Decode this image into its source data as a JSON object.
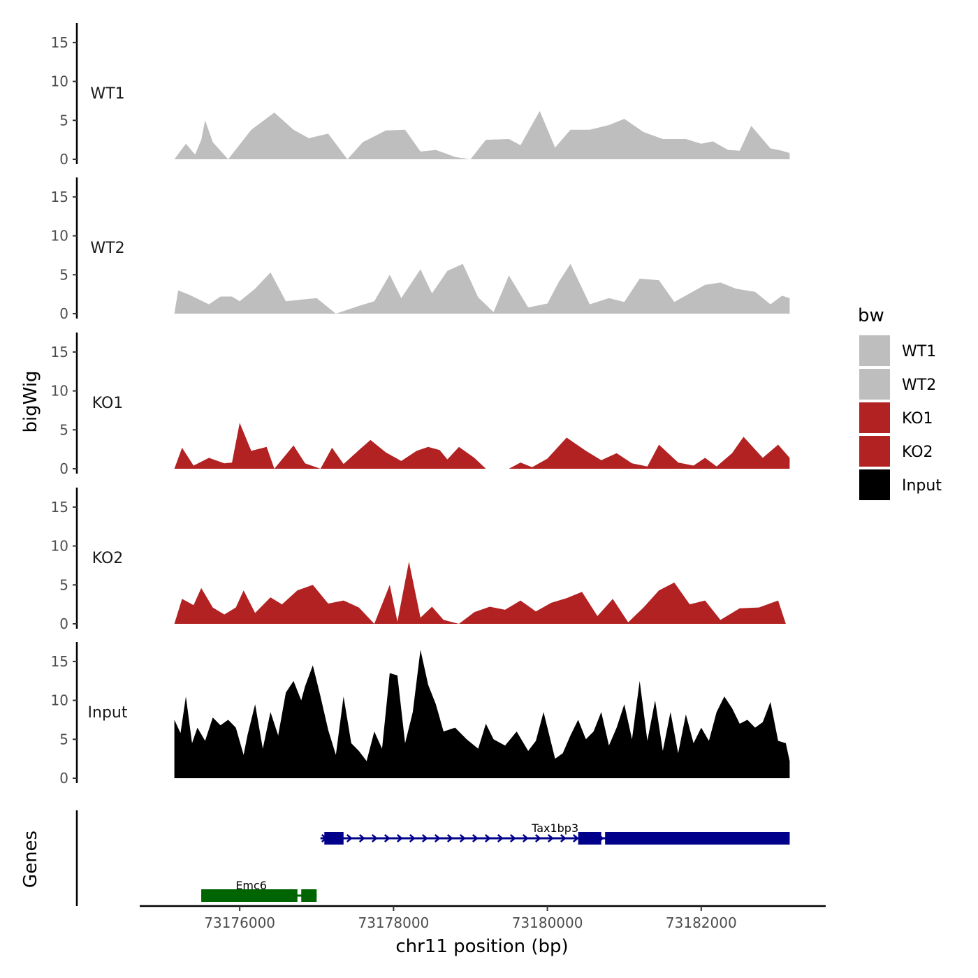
{
  "chart_data": {
    "type": "area",
    "ylabel": "bigWig",
    "genes_label": "Genes",
    "xlabel": "chr11 position (bp)",
    "x_ticks": [
      "73176000",
      "73178000",
      "73180000",
      "73182000"
    ],
    "x_tick_values": [
      73176000,
      73178000,
      73180000,
      73182000
    ],
    "xlim": [
      73174700,
      73183600
    ],
    "y_ticks": [
      "0",
      "5",
      "10",
      "15"
    ],
    "y_tick_values": [
      0,
      5,
      10,
      15
    ],
    "ylim": [
      0,
      17.5
    ],
    "legend": {
      "title": "bw",
      "entries": [
        {
          "label": "WT1",
          "color": "#bebebe"
        },
        {
          "label": "WT2",
          "color": "#bebebe"
        },
        {
          "label": "KO1",
          "color": "#b22222"
        },
        {
          "label": "KO2",
          "color": "#b22222"
        },
        {
          "label": "Input",
          "color": "#000000"
        }
      ]
    },
    "series": [
      {
        "name": "WT1",
        "color": "#bebebe",
        "x": [
          73175150,
          73175300,
          73175420,
          73175500,
          73175550,
          73175650,
          73175850,
          73176150,
          73176450,
          73176700,
          73176900,
          73177150,
          73177400,
          73177600,
          73177900,
          73178150,
          73178350,
          73178550,
          73178800,
          73179000,
          73179200,
          73179500,
          73179650,
          73179900,
          73180100,
          73180300,
          73180550,
          73180800,
          73181000,
          73181250,
          73181500,
          73181800,
          73182000,
          73182150,
          73182350,
          73182500,
          73182650,
          73182900,
          73183050,
          73183150
        ],
        "values": [
          0,
          2,
          0.6,
          2.5,
          5,
          2.2,
          0,
          3.8,
          6,
          3.8,
          2.7,
          3.3,
          0,
          2.2,
          3.7,
          3.8,
          1,
          1.2,
          0.3,
          0,
          2.5,
          2.6,
          1.8,
          6.2,
          1.5,
          3.8,
          3.8,
          4.4,
          5.2,
          3.5,
          2.6,
          2.6,
          2,
          2.3,
          1.2,
          1.1,
          4.3,
          1.4,
          1.1,
          0.8
        ]
      },
      {
        "name": "WT2",
        "color": "#bebebe",
        "x": [
          73175150,
          73175200,
          73175350,
          73175600,
          73175750,
          73175900,
          73176000,
          73176200,
          73176400,
          73176600,
          73176800,
          73177000,
          73177250,
          73177550,
          73177750,
          73177950,
          73178100,
          73178350,
          73178500,
          73178700,
          73178900,
          73179100,
          73179300,
          73179500,
          73179750,
          73180000,
          73180150,
          73180300,
          73180550,
          73180800,
          73181000,
          73181200,
          73181450,
          73181650,
          73181850,
          73182050,
          73182250,
          73182450,
          73182700,
          73182900,
          73183050,
          73183150
        ],
        "values": [
          0,
          3,
          2.4,
          1.2,
          2.2,
          2.2,
          1.6,
          3.2,
          5.3,
          1.6,
          1.8,
          2,
          0,
          1,
          1.6,
          5,
          2,
          5.7,
          2.6,
          5.5,
          6.4,
          2.1,
          0.2,
          4.9,
          0.8,
          1.3,
          4.1,
          6.4,
          1.2,
          2,
          1.5,
          4.5,
          4.3,
          1.5,
          2.6,
          3.7,
          4,
          3.2,
          2.8,
          1.2,
          2.3,
          2
        ]
      },
      {
        "name": "KO1",
        "color": "#b22222",
        "x": [
          73175150,
          73175250,
          73175400,
          73175600,
          73175800,
          73175900,
          73176000,
          73176150,
          73176350,
          73176450,
          73176700,
          73176850,
          73177050,
          73177200,
          73177350,
          73177550,
          73177700,
          73177900,
          73178100,
          73178300,
          73178450,
          73178600,
          73178700,
          73178850,
          73179050,
          73179200,
          73179500,
          73179650,
          73179800,
          73180000,
          73180250,
          73180500,
          73180700,
          73180900,
          73181100,
          73181300,
          73181450,
          73181700,
          73181900,
          73182050,
          73182200,
          73182400,
          73182550,
          73182800,
          73183000,
          73183150
        ],
        "values": [
          0,
          2.7,
          0.4,
          1.4,
          0.7,
          0.8,
          5.9,
          2.3,
          2.8,
          0,
          3,
          0.7,
          0,
          2.7,
          0.6,
          2.4,
          3.7,
          2.1,
          1,
          2.3,
          2.8,
          2.4,
          1.2,
          2.8,
          1.4,
          0,
          0,
          0.8,
          0.2,
          1.3,
          4,
          2.3,
          1.1,
          2,
          0.7,
          0.3,
          3.1,
          0.8,
          0.4,
          1.4,
          0.3,
          2,
          4.1,
          1.4,
          3.1,
          1.4
        ]
      },
      {
        "name": "KO2",
        "color": "#b22222",
        "x": [
          73175150,
          73175250,
          73175400,
          73175500,
          73175650,
          73175800,
          73175950,
          73176050,
          73176200,
          73176400,
          73176550,
          73176750,
          73176950,
          73177150,
          73177350,
          73177550,
          73177750,
          73177950,
          73178050,
          73178200,
          73178350,
          73178500,
          73178650,
          73178850,
          73179050,
          73179250,
          73179450,
          73179650,
          73179850,
          73180050,
          73180250,
          73180450,
          73180650,
          73180850,
          73181050,
          73181250,
          73181450,
          73181650,
          73181850,
          73182050,
          73182250,
          73182500,
          73182750,
          73183000,
          73183100
        ],
        "values": [
          0,
          3.2,
          2.4,
          4.6,
          2.1,
          1.2,
          2.1,
          4.3,
          1.4,
          3.4,
          2.5,
          4.3,
          5,
          2.6,
          3,
          2.1,
          0,
          5,
          0.3,
          8,
          0.8,
          2.2,
          0.5,
          0,
          1.5,
          2.2,
          1.8,
          3,
          1.6,
          2.7,
          3.3,
          4.1,
          1,
          3.2,
          0.2,
          2.1,
          4.3,
          5.3,
          2.5,
          3,
          0.5,
          2,
          2.1,
          3,
          0
        ]
      },
      {
        "name": "Input",
        "color": "#000000",
        "x": [
          73175150,
          73175230,
          73175300,
          73175380,
          73175450,
          73175550,
          73175650,
          73175750,
          73175850,
          73175950,
          73176050,
          73176100,
          73176200,
          73176300,
          73176400,
          73176500,
          73176600,
          73176700,
          73176800,
          73176850,
          73176950,
          73177050,
          73177150,
          73177250,
          73177350,
          73177450,
          73177550,
          73177650,
          73177750,
          73177850,
          73177950,
          73178050,
          73178150,
          73178250,
          73178350,
          73178450,
          73178550,
          73178650,
          73178800,
          73178950,
          73179100,
          73179200,
          73179300,
          73179450,
          73179600,
          73179750,
          73179850,
          73179950,
          73180100,
          73180200,
          73180300,
          73180400,
          73180500,
          73180600,
          73180700,
          73180800,
          73180900,
          73181000,
          73181100,
          73181200,
          73181300,
          73181400,
          73181500,
          73181600,
          73181700,
          73181800,
          73181900,
          73182000,
          73182100,
          73182200,
          73182300,
          73182400,
          73182500,
          73182600,
          73182700,
          73182800,
          73182900,
          73183000,
          73183100,
          73183150
        ],
        "values": [
          7.5,
          5.8,
          10.5,
          4.5,
          6.5,
          4.8,
          7.8,
          6.8,
          7.5,
          6.5,
          3,
          5.5,
          9.5,
          3.8,
          8.5,
          5.5,
          11,
          12.5,
          10,
          11.8,
          14.5,
          10.5,
          6.2,
          3,
          10.5,
          4.5,
          3.5,
          2.2,
          6,
          3.8,
          13.5,
          13.2,
          4.5,
          8.5,
          16.5,
          12,
          9.5,
          6,
          6.5,
          5,
          3.8,
          7,
          5,
          4.2,
          6,
          3.5,
          4.8,
          8.5,
          2.5,
          3.2,
          5.5,
          7.5,
          5,
          6,
          8.5,
          4.2,
          6.5,
          9.5,
          5,
          12.5,
          4.8,
          10,
          3.5,
          8.5,
          3.2,
          8.2,
          4.5,
          6.5,
          4.8,
          8.5,
          10.5,
          9,
          7,
          7.5,
          6.5,
          7.2,
          9.8,
          4.8,
          4.5,
          2.2
        ]
      }
    ],
    "genes": [
      {
        "name": "Tax1bp3",
        "color": "#00008b",
        "strand": "+",
        "start": 73177050,
        "end": 73183150,
        "exons": [
          [
            73177100,
            73177350
          ],
          [
            73180400,
            73180700
          ],
          [
            73180750,
            73183150
          ]
        ]
      },
      {
        "name": "Emc6",
        "color": "#006400",
        "strand": "-",
        "start": 73175500,
        "end": 73177000,
        "exons": [
          [
            73175500,
            73176750
          ],
          [
            73176800,
            73177000
          ]
        ]
      }
    ]
  }
}
